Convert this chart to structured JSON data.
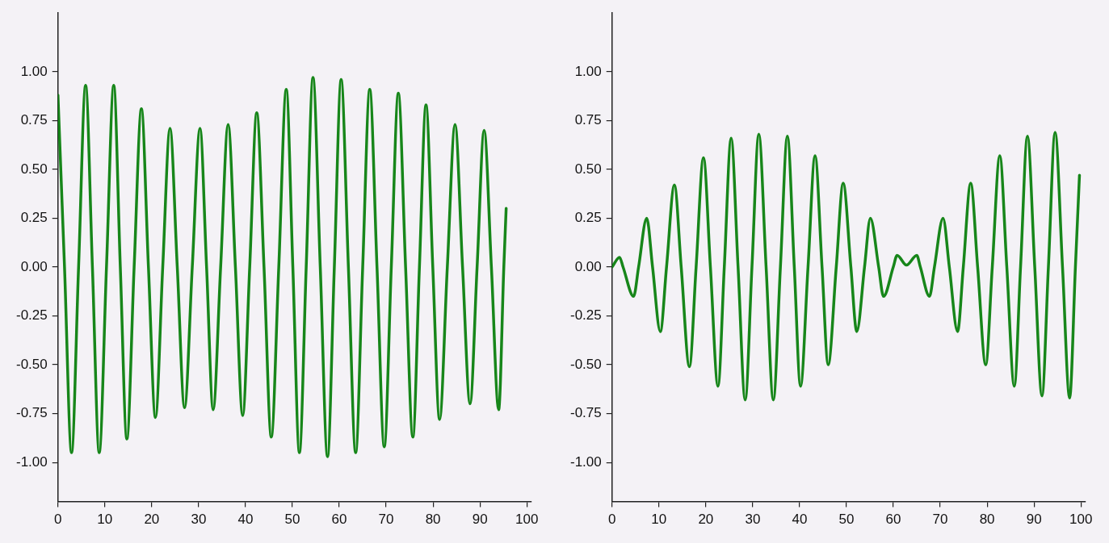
{
  "chart_data": [
    {
      "type": "line",
      "xlim": [
        0,
        101
      ],
      "ylim": [
        -1.2,
        1.3
      ],
      "xticks": [
        0,
        10,
        20,
        30,
        40,
        50,
        60,
        70,
        80,
        90,
        100
      ],
      "yticks": [
        {
          "value": -1,
          "label": "-1.00"
        },
        {
          "value": -0.75,
          "label": "-0.75"
        },
        {
          "value": -0.5,
          "label": "-0.50"
        },
        {
          "value": -0.25,
          "label": "-0.25"
        },
        {
          "value": 0,
          "label": "0.00"
        },
        {
          "value": 0.25,
          "label": "0.25"
        },
        {
          "value": 0.5,
          "label": "0.50"
        },
        {
          "value": 0.75,
          "label": "0.75"
        },
        {
          "value": 1,
          "label": "1.00"
        }
      ],
      "grid": false,
      "series": [
        {
          "color": "#17861a",
          "x": [
            0,
            1.4,
            2.9,
            4.4,
            5.9,
            7.35,
            8.8,
            10.35,
            11.9,
            13.3,
            14.7,
            16.25,
            17.8,
            19.3,
            20.8,
            22.35,
            23.9,
            25.45,
            27.0,
            28.65,
            30.3,
            31.7,
            33.1,
            34.7,
            36.3,
            37.85,
            39.4,
            40.9,
            42.4,
            43.95,
            45.5,
            47.1,
            48.7,
            50.1,
            51.5,
            52.95,
            54.4,
            55.95,
            57.5,
            58.95,
            60.4,
            61.95,
            63.5,
            65.0,
            66.5,
            68.05,
            69.6,
            71.1,
            72.6,
            74.15,
            75.7,
            77.1,
            78.5,
            79.95,
            81.4,
            83.05,
            84.7,
            86.3,
            87.9,
            89.4,
            90.9,
            92.45,
            94.0,
            95.1,
            95.6
          ],
          "values": [
            0.88,
            0,
            -0.95,
            0,
            0.93,
            0,
            -0.95,
            0,
            0.93,
            0,
            -0.88,
            0,
            0.81,
            0,
            -0.77,
            0,
            0.71,
            0,
            -0.72,
            0,
            0.71,
            0,
            -0.73,
            0,
            0.73,
            0,
            -0.76,
            0,
            0.79,
            0,
            -0.87,
            0,
            0.91,
            0,
            -0.95,
            0,
            0.97,
            0,
            -0.97,
            0,
            0.96,
            0,
            -0.95,
            0,
            0.91,
            0,
            -0.92,
            0,
            0.89,
            0,
            -0.87,
            0,
            0.83,
            0,
            -0.78,
            0,
            0.73,
            0,
            -0.7,
            0,
            0.7,
            0,
            -0.73,
            0,
            0.3
          ]
        }
      ]
    },
    {
      "type": "line",
      "xlim": [
        0,
        101
      ],
      "ylim": [
        -1.2,
        1.3
      ],
      "xticks": [
        0,
        10,
        20,
        30,
        40,
        50,
        60,
        70,
        80,
        90,
        100
      ],
      "yticks": [
        {
          "value": -1,
          "label": "-1.00"
        },
        {
          "value": -0.75,
          "label": "-0.75"
        },
        {
          "value": -0.5,
          "label": "-0.50"
        },
        {
          "value": -0.25,
          "label": "-0.25"
        },
        {
          "value": 0,
          "label": "0.00"
        },
        {
          "value": 0.25,
          "label": "0.25"
        },
        {
          "value": 0.5,
          "label": "0.50"
        },
        {
          "value": 0.75,
          "label": "0.75"
        },
        {
          "value": 1,
          "label": "1.00"
        }
      ],
      "grid": false,
      "series": [
        {
          "color": "#17861a",
          "x": [
            0,
            1.6,
            2.35,
            4.6,
            5.66,
            7.4,
            8.64,
            10.3,
            11.62,
            13.3,
            14.75,
            16.5,
            17.93,
            19.5,
            20.98,
            22.6,
            23.94,
            25.4,
            26.88,
            28.4,
            29.84,
            31.3,
            32.86,
            34.4,
            35.91,
            37.4,
            38.87,
            40.2,
            41.8,
            43.3,
            44.79,
            46.1,
            47.82,
            49.3,
            50.94,
            52.2,
            53.85,
            55.1,
            56.87,
            57.9,
            59.98,
            60.8,
            62.8,
            65.0,
            65.76,
            67.7,
            68.76,
            70.6,
            71.94,
            73.7,
            74.92,
            76.5,
            77.98,
            79.7,
            81.1,
            82.7,
            84.2,
            85.8,
            87.13,
            88.6,
            90.16,
            91.7,
            93.07,
            94.5,
            96.08,
            97.6,
            98.83,
            99.7
          ],
          "values": [
            0,
            0.05,
            0,
            -0.15,
            0,
            0.25,
            0,
            -0.33,
            0,
            0.42,
            0,
            -0.51,
            0,
            0.56,
            0,
            -0.61,
            0,
            0.66,
            0,
            -0.68,
            0,
            0.68,
            0,
            -0.68,
            0,
            0.67,
            0,
            -0.61,
            0,
            0.57,
            0,
            -0.5,
            0,
            0.43,
            0,
            -0.33,
            0,
            0.25,
            0,
            -0.15,
            0,
            0.06,
            0.01,
            0.06,
            0,
            -0.15,
            0,
            0.25,
            0,
            -0.33,
            0,
            0.43,
            0,
            -0.5,
            0,
            0.57,
            0,
            -0.61,
            0,
            0.67,
            0,
            -0.66,
            0,
            0.69,
            0,
            -0.67,
            0,
            0.47
          ]
        }
      ]
    }
  ]
}
